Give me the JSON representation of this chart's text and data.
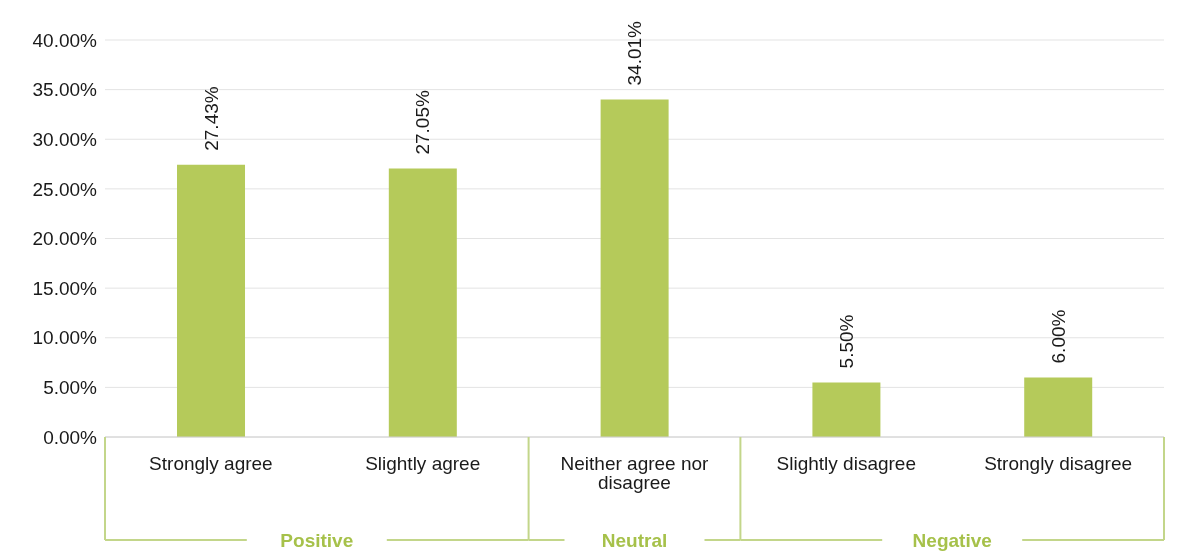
{
  "chart_data": {
    "type": "bar",
    "categories": [
      "Strongly agree",
      "Slightly agree",
      "Neither agree nor disagree",
      "Slightly disagree",
      "Strongly disagree"
    ],
    "values": [
      27.43,
      27.05,
      34.01,
      5.5,
      6.0
    ],
    "value_labels": [
      "27.43%",
      "27.05%",
      "34.01%",
      "5.50%",
      "6.00%"
    ],
    "color": "#b5ca5a",
    "ylim": [
      0,
      40
    ],
    "yticks": [
      {
        "value": 0,
        "label": "0.00%"
      },
      {
        "value": 5,
        "label": "5.00%"
      },
      {
        "value": 10,
        "label": "10.00%"
      },
      {
        "value": 15,
        "label": "15.00%"
      },
      {
        "value": 20,
        "label": "20.00%"
      },
      {
        "value": 25,
        "label": "25.00%"
      },
      {
        "value": 30,
        "label": "30.00%"
      },
      {
        "value": 35,
        "label": "35.00%"
      },
      {
        "value": 40,
        "label": "40.00%"
      }
    ],
    "grid": "y",
    "annotations": [
      "Positive",
      "Neutral",
      "Negative"
    ]
  }
}
